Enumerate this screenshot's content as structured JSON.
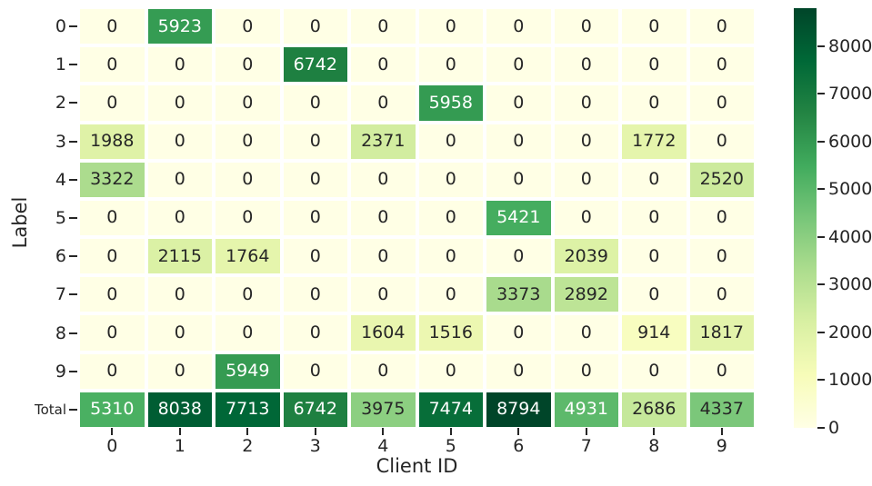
{
  "chart_data": {
    "type": "heatmap",
    "title": "",
    "xlabel": "Client ID",
    "ylabel": "Label",
    "x_tick_labels": [
      "0",
      "1",
      "2",
      "3",
      "4",
      "5",
      "6",
      "7",
      "8",
      "9"
    ],
    "y_tick_labels": [
      "0",
      "1",
      "2",
      "3",
      "4",
      "5",
      "6",
      "7",
      "8",
      "9",
      "Total"
    ],
    "vmin": 0,
    "vmax": 8794,
    "colormap_name": "YlGn",
    "colormap_stops": [
      "#ffffe5",
      "#f7fcb9",
      "#d9f0a3",
      "#addd8e",
      "#78c679",
      "#41ab5d",
      "#238443",
      "#006837",
      "#004529"
    ],
    "annotation_dark_color": "#262626",
    "annotation_light_color": "#ffffff",
    "luminance_threshold": 0.408,
    "grid_line_color": "#ffffff",
    "legend_position": "right-colorbar",
    "colorbar_ticks": [
      0,
      1000,
      2000,
      3000,
      4000,
      5000,
      6000,
      7000,
      8000
    ],
    "rows": [
      {
        "label": "0",
        "values": [
          0,
          5923,
          0,
          0,
          0,
          0,
          0,
          0,
          0,
          0
        ]
      },
      {
        "label": "1",
        "values": [
          0,
          0,
          0,
          6742,
          0,
          0,
          0,
          0,
          0,
          0
        ]
      },
      {
        "label": "2",
        "values": [
          0,
          0,
          0,
          0,
          0,
          5958,
          0,
          0,
          0,
          0
        ]
      },
      {
        "label": "3",
        "values": [
          1988,
          0,
          0,
          0,
          2371,
          0,
          0,
          0,
          1772,
          0
        ]
      },
      {
        "label": "4",
        "values": [
          3322,
          0,
          0,
          0,
          0,
          0,
          0,
          0,
          0,
          2520
        ]
      },
      {
        "label": "5",
        "values": [
          0,
          0,
          0,
          0,
          0,
          0,
          5421,
          0,
          0,
          0
        ]
      },
      {
        "label": "6",
        "values": [
          0,
          2115,
          1764,
          0,
          0,
          0,
          0,
          2039,
          0,
          0
        ]
      },
      {
        "label": "7",
        "values": [
          0,
          0,
          0,
          0,
          0,
          0,
          3373,
          2892,
          0,
          0
        ]
      },
      {
        "label": "8",
        "values": [
          0,
          0,
          0,
          0,
          1604,
          1516,
          0,
          0,
          914,
          1817
        ]
      },
      {
        "label": "9",
        "values": [
          0,
          0,
          5949,
          0,
          0,
          0,
          0,
          0,
          0,
          0
        ]
      },
      {
        "label": "Total",
        "values": [
          5310,
          8038,
          7713,
          6742,
          3975,
          7474,
          8794,
          4931,
          2686,
          4337
        ]
      }
    ]
  },
  "colors": {
    "background": "#ffffff",
    "tick_color": "#262626",
    "axis_label_color": "#262626"
  }
}
